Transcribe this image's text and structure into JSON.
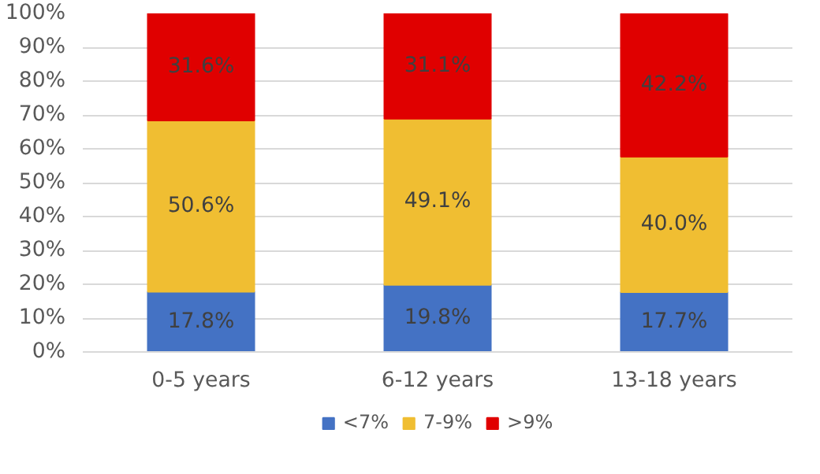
{
  "chart_data": {
    "type": "bar",
    "stacked": true,
    "categories": [
      "0-5 years",
      "6-12 years",
      "13-18 years"
    ],
    "series": [
      {
        "name": "<7%",
        "color": "#4472c4",
        "values": [
          17.8,
          19.8,
          17.7
        ],
        "value_labels": [
          "17.8%",
          "19.8%",
          "17.7%"
        ]
      },
      {
        "name": "7-9%",
        "color": "#f0be32",
        "values": [
          50.6,
          49.1,
          40.0
        ],
        "value_labels": [
          "50.6%",
          "49.1%",
          "40.0%"
        ]
      },
      {
        "name": ">9%",
        "color": "#e00000",
        "values": [
          31.6,
          31.1,
          42.2
        ],
        "value_labels": [
          "31.6%",
          "31.1%",
          "42.2%"
        ]
      }
    ],
    "ylim": [
      0,
      100
    ],
    "yticks": [
      {
        "value": 0,
        "label": "0%"
      },
      {
        "value": 10,
        "label": "10%"
      },
      {
        "value": 20,
        "label": "20%"
      },
      {
        "value": 30,
        "label": "30%"
      },
      {
        "value": 40,
        "label": "40%"
      },
      {
        "value": 50,
        "label": "50%"
      },
      {
        "value": 60,
        "label": "60%"
      },
      {
        "value": 70,
        "label": "70%"
      },
      {
        "value": 80,
        "label": "80%"
      },
      {
        "value": 90,
        "label": "90%"
      },
      {
        "value": 100,
        "label": "100%"
      }
    ],
    "grid": "y",
    "legend": "bottom"
  }
}
